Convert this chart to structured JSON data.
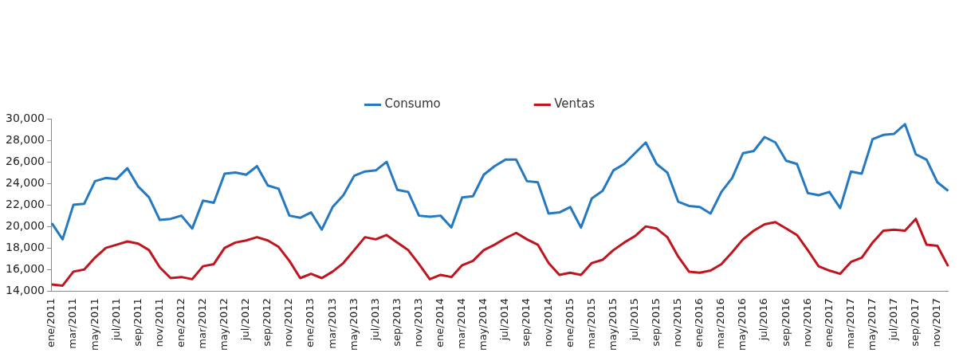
{
  "chart_data": {
    "type": "line",
    "categories": [
      "ene/2011",
      null,
      "mar/2011",
      null,
      "may/2011",
      null,
      "jul/2011",
      null,
      "sep/2011",
      null,
      "nov/2011",
      null,
      "ene/2012",
      null,
      "mar/2012",
      null,
      "may/2012",
      null,
      "jul/2012",
      null,
      "sep/2012",
      null,
      "nov/2012",
      null,
      "ene/2013",
      null,
      "mar/2013",
      null,
      "may/2013",
      null,
      "jul/2013",
      null,
      "sep/2013",
      null,
      "nov/2013",
      null,
      "ene/2014",
      null,
      "mar/2014",
      null,
      "may/2014",
      null,
      "jul/2014",
      null,
      "sep/2014",
      null,
      "nov/2014",
      null,
      "ene/2015",
      null,
      "mar/2015",
      null,
      "may/2015",
      null,
      "jul/2015",
      null,
      "sep/2015",
      null,
      "nov/2015",
      null,
      "ene/2016",
      null,
      "mar/2016",
      null,
      "may/2016",
      null,
      "jul/2016",
      null,
      "sep/2016",
      null,
      "nov/2016",
      null,
      "ene/2017",
      null,
      "mar/2017",
      null,
      "may/2017",
      null,
      "jul/2017",
      null,
      "sep/2017",
      null,
      "nov/2017",
      null
    ],
    "series": [
      {
        "name": "Consumo",
        "color": "#2479c1",
        "values": [
          20300,
          18800,
          22000,
          22100,
          24200,
          24500,
          24400,
          25400,
          23700,
          22700,
          20600,
          20700,
          21000,
          19800,
          22400,
          22200,
          24900,
          25000,
          24800,
          25600,
          23800,
          23500,
          21000,
          20800,
          21300,
          19700,
          21800,
          22900,
          24700,
          25100,
          25200,
          26000,
          23400,
          23200,
          21000,
          20900,
          21000,
          19900,
          22700,
          22800,
          24800,
          25600,
          26200,
          26200,
          24200,
          24100,
          21200,
          21300,
          21800,
          19900,
          22600,
          23300,
          25200,
          25800,
          26800,
          27800,
          25800,
          25000,
          22300,
          21900,
          21800,
          21200,
          23200,
          24500,
          26800,
          27000,
          28300,
          27800,
          26100,
          25800,
          23100,
          22900,
          23200,
          21700,
          25100,
          24900,
          28100,
          28500,
          28600,
          29500,
          26700,
          26200,
          24100,
          23300
        ]
      },
      {
        "name": "Ventas",
        "color": "#c0151e",
        "values": [
          14600,
          14500,
          15800,
          16000,
          17100,
          18000,
          18300,
          18600,
          18400,
          17800,
          16200,
          15200,
          15300,
          15100,
          16300,
          16500,
          18000,
          18500,
          18700,
          19000,
          18700,
          18100,
          16800,
          15200,
          15600,
          15200,
          15800,
          16600,
          17800,
          19000,
          18800,
          19200,
          18500,
          17800,
          16500,
          15100,
          15500,
          15300,
          16400,
          16800,
          17800,
          18300,
          18900,
          19400,
          18800,
          18300,
          16600,
          15500,
          15700,
          15500,
          16600,
          16900,
          17800,
          18500,
          19100,
          20000,
          19800,
          19000,
          17200,
          15800,
          15700,
          15900,
          16500,
          17600,
          18800,
          19600,
          20200,
          20400,
          19800,
          19200,
          17800,
          16300,
          15900,
          15600,
          16700,
          17100,
          18500,
          19600,
          19700,
          19600,
          20700,
          18300,
          18200,
          16300
        ]
      }
    ],
    "ylim": [
      14000,
      30000
    ],
    "yticks": [
      {
        "value": 14000,
        "label": "14,000"
      },
      {
        "value": 16000,
        "label": "16,000"
      },
      {
        "value": 18000,
        "label": "18,000"
      },
      {
        "value": 20000,
        "label": "20,000"
      },
      {
        "value": 22000,
        "label": "22,000"
      },
      {
        "value": 24000,
        "label": "24,000"
      },
      {
        "value": 26000,
        "label": "26,000"
      },
      {
        "value": 28000,
        "label": "28,000"
      },
      {
        "value": 30000,
        "label": "30,000"
      }
    ],
    "grid": false,
    "legend": "top",
    "marker": "none",
    "line_style": "solid"
  }
}
